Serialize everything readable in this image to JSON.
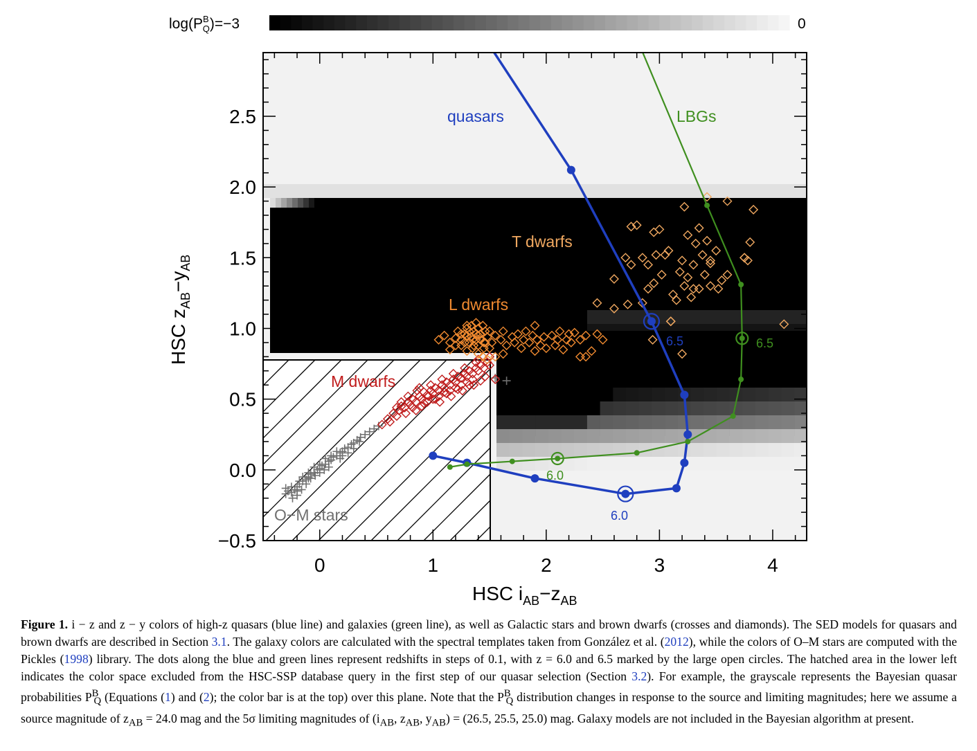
{
  "colorbar": {
    "label": "log(P",
    "label_sup": "B",
    "label_sub": "Q",
    "label_tail": ")=−3",
    "max_label": "0"
  },
  "chart_data": {
    "type": "scatter",
    "xlabel": "HSC  i",
    "xlabel_sub1": "AB",
    "xlabel_mid": "−z",
    "xlabel_sub2": "AB",
    "ylabel": "HSC  z",
    "ylabel_sub1": "AB",
    "ylabel_mid": "−y",
    "ylabel_sub2": "AB",
    "xlim": [
      -0.5,
      4.3
    ],
    "ylim": [
      -0.5,
      2.95
    ],
    "xticks": [
      0,
      1,
      2,
      3,
      4
    ],
    "xtick_labels": [
      "0",
      "1",
      "2",
      "3",
      "4"
    ],
    "yticks": [
      -0.5,
      0.0,
      0.5,
      1.0,
      1.5,
      2.0,
      2.5
    ],
    "ytick_labels": [
      "−0.5",
      "0.0",
      "0.5",
      "1.0",
      "1.5",
      "2.0",
      "2.5"
    ],
    "colors": {
      "quasars": "#1f3fbf",
      "lbgs": "#3f8f1f",
      "t_dwarfs": "#f0a860",
      "l_dwarfs": "#f08a30",
      "m_dwarfs": "#c01c1c",
      "om_stars": "#707070"
    },
    "series": [
      {
        "name": "quasars",
        "x": [
          1.0,
          1.3,
          1.9,
          2.7,
          3.15,
          3.22,
          3.25,
          3.22,
          2.93,
          2.22,
          1.5
        ],
        "y": [
          0.1,
          0.05,
          -0.06,
          -0.17,
          -0.13,
          0.05,
          0.25,
          0.53,
          1.05,
          2.12,
          3.0
        ],
        "large_points": [
          {
            "x": 2.7,
            "y": -0.17,
            "label": "6.0"
          },
          {
            "x": 2.93,
            "y": 1.05,
            "label": "6.5"
          }
        ]
      },
      {
        "name": "LBGs",
        "x": [
          1.15,
          1.3,
          1.7,
          2.1,
          2.8,
          3.25,
          3.65,
          3.72,
          3.73,
          3.72,
          3.42,
          2.8
        ],
        "y": [
          0.02,
          0.04,
          0.06,
          0.08,
          0.12,
          0.2,
          0.38,
          0.64,
          0.93,
          1.31,
          1.87,
          3.05
        ],
        "large_points": [
          {
            "x": 2.1,
            "y": 0.08,
            "label": "6.0"
          },
          {
            "x": 3.73,
            "y": 0.93,
            "label": "6.5"
          }
        ]
      }
    ],
    "annotations": [
      "quasars",
      "LBGs",
      "T dwarfs",
      "L dwarfs",
      "M dwarfs",
      "O−M stars",
      "6.5",
      "6.5",
      "6.0",
      "6.0"
    ],
    "t_dwarfs": [
      [
        2.6,
        1.35
      ],
      [
        2.75,
        1.45
      ],
      [
        2.75,
        1.72
      ],
      [
        2.8,
        1.73
      ],
      [
        2.85,
        1.5
      ],
      [
        2.85,
        1.18
      ],
      [
        2.9,
        1.45
      ],
      [
        2.9,
        1.28
      ],
      [
        2.95,
        1.68
      ],
      [
        2.97,
        1.52
      ],
      [
        3.0,
        1.7
      ],
      [
        3.02,
        1.38
      ],
      [
        3.05,
        1.52
      ],
      [
        3.08,
        1.55
      ],
      [
        3.12,
        1.24
      ],
      [
        3.15,
        1.2
      ],
      [
        3.18,
        1.4
      ],
      [
        3.2,
        1.48
      ],
      [
        3.22,
        1.86
      ],
      [
        3.22,
        1.3
      ],
      [
        3.25,
        1.66
      ],
      [
        3.28,
        1.22
      ],
      [
        3.3,
        1.45
      ],
      [
        3.32,
        1.6
      ],
      [
        3.35,
        1.71
      ],
      [
        3.38,
        1.52
      ],
      [
        3.4,
        1.38
      ],
      [
        3.42,
        1.93
      ],
      [
        3.42,
        1.62
      ],
      [
        3.45,
        1.3
      ],
      [
        3.45,
        1.46
      ],
      [
        3.5,
        1.55
      ],
      [
        3.52,
        1.28
      ],
      [
        3.55,
        1.34
      ],
      [
        3.6,
        1.38
      ],
      [
        3.35,
        1.28
      ],
      [
        3.25,
        1.36
      ],
      [
        2.6,
        1.14
      ],
      [
        2.45,
        1.18
      ],
      [
        2.72,
        1.17
      ],
      [
        2.95,
        1.32
      ],
      [
        3.1,
        1.05
      ],
      [
        3.45,
        1.48
      ],
      [
        3.6,
        1.9
      ],
      [
        3.75,
        1.5
      ],
      [
        3.8,
        1.61
      ],
      [
        3.78,
        1.48
      ],
      [
        3.83,
        1.84
      ],
      [
        3.75,
        1.5
      ],
      [
        2.7,
        1.5
      ],
      [
        3.3,
        1.28
      ],
      [
        4.1,
        1.03
      ],
      [
        3.2,
        0.82
      ],
      [
        2.94,
        0.92
      ],
      [
        3.1,
        1.05
      ]
    ],
    "l_dwarfs": [
      [
        1.05,
        0.92
      ],
      [
        1.1,
        0.95
      ],
      [
        1.15,
        0.9
      ],
      [
        1.2,
        0.93
      ],
      [
        1.22,
        0.98
      ],
      [
        1.25,
        0.88
      ],
      [
        1.28,
        0.96
      ],
      [
        1.3,
        1.0
      ],
      [
        1.32,
        0.9
      ],
      [
        1.34,
        0.94
      ],
      [
        1.36,
        0.98
      ],
      [
        1.38,
        0.92
      ],
      [
        1.4,
        0.88
      ],
      [
        1.42,
        0.96
      ],
      [
        1.44,
        1.02
      ],
      [
        1.46,
        0.9
      ],
      [
        1.48,
        0.94
      ],
      [
        1.5,
        0.98
      ],
      [
        1.52,
        0.9
      ],
      [
        1.3,
        0.84
      ],
      [
        1.35,
        0.86
      ],
      [
        1.4,
        0.82
      ],
      [
        1.25,
        0.92
      ],
      [
        1.45,
        0.86
      ],
      [
        1.55,
        0.95
      ],
      [
        1.6,
        0.92
      ],
      [
        1.62,
        0.98
      ],
      [
        1.65,
        0.88
      ],
      [
        1.7,
        0.94
      ],
      [
        1.72,
        0.9
      ],
      [
        1.75,
        0.96
      ],
      [
        1.78,
        0.86
      ],
      [
        1.8,
        0.92
      ],
      [
        1.82,
        0.98
      ],
      [
        1.85,
        0.9
      ],
      [
        1.88,
        0.95
      ],
      [
        1.9,
        0.84
      ],
      [
        1.92,
        0.92
      ],
      [
        1.95,
        0.88
      ],
      [
        1.98,
        0.94
      ],
      [
        2.0,
        0.86
      ],
      [
        2.05,
        0.95
      ],
      [
        2.08,
        0.88
      ],
      [
        2.1,
        0.92
      ],
      [
        2.12,
        0.98
      ],
      [
        2.15,
        0.85
      ],
      [
        2.18,
        0.92
      ],
      [
        2.2,
        0.96
      ],
      [
        2.22,
        0.9
      ],
      [
        2.25,
        0.97
      ],
      [
        2.3,
        0.92
      ],
      [
        2.35,
        0.95
      ],
      [
        2.4,
        0.84
      ],
      [
        2.45,
        0.96
      ],
      [
        2.5,
        0.92
      ],
      [
        1.3,
        1.02
      ],
      [
        1.38,
        1.04
      ],
      [
        1.44,
        0.8
      ],
      [
        1.48,
        0.78
      ],
      [
        1.55,
        0.8
      ],
      [
        1.62,
        0.82
      ],
      [
        1.9,
        1.02
      ],
      [
        2.3,
        0.8
      ],
      [
        2.35,
        0.8
      ],
      [
        1.15,
        0.85
      ],
      [
        1.2,
        0.88
      ],
      [
        1.3,
        0.95
      ],
      [
        1.35,
        0.92
      ],
      [
        1.4,
        1.0
      ],
      [
        1.45,
        0.9
      ],
      [
        1.5,
        0.86
      ],
      [
        1.25,
        0.96
      ],
      [
        1.32,
        0.98
      ],
      [
        1.4,
        0.95
      ],
      [
        1.36,
        0.88
      ],
      [
        1.42,
        0.92
      ],
      [
        1.28,
        0.9
      ],
      [
        1.34,
        1.02
      ],
      [
        1.38,
        0.96
      ],
      [
        1.46,
        0.98
      ]
    ],
    "m_dwarfs": [
      [
        0.55,
        0.32
      ],
      [
        0.6,
        0.36
      ],
      [
        0.62,
        0.34
      ],
      [
        0.65,
        0.4
      ],
      [
        0.68,
        0.38
      ],
      [
        0.7,
        0.42
      ],
      [
        0.72,
        0.45
      ],
      [
        0.75,
        0.44
      ],
      [
        0.78,
        0.48
      ],
      [
        0.8,
        0.46
      ],
      [
        0.82,
        0.5
      ],
      [
        0.85,
        0.48
      ],
      [
        0.88,
        0.52
      ],
      [
        0.9,
        0.5
      ],
      [
        0.92,
        0.55
      ],
      [
        0.95,
        0.53
      ],
      [
        0.98,
        0.56
      ],
      [
        1.0,
        0.54
      ],
      [
        1.02,
        0.58
      ],
      [
        1.05,
        0.56
      ],
      [
        1.08,
        0.6
      ],
      [
        1.1,
        0.58
      ],
      [
        1.12,
        0.62
      ],
      [
        1.15,
        0.6
      ],
      [
        1.18,
        0.64
      ],
      [
        1.2,
        0.62
      ],
      [
        1.22,
        0.66
      ],
      [
        1.25,
        0.65
      ],
      [
        1.28,
        0.68
      ],
      [
        1.3,
        0.66
      ],
      [
        1.32,
        0.7
      ],
      [
        1.35,
        0.68
      ],
      [
        1.38,
        0.72
      ],
      [
        1.4,
        0.7
      ],
      [
        1.42,
        0.74
      ],
      [
        1.45,
        0.72
      ],
      [
        1.48,
        0.76
      ],
      [
        1.5,
        0.74
      ],
      [
        0.85,
        0.42
      ],
      [
        0.9,
        0.45
      ],
      [
        0.95,
        0.48
      ],
      [
        1.0,
        0.5
      ],
      [
        1.05,
        0.52
      ],
      [
        1.1,
        0.55
      ],
      [
        1.15,
        0.56
      ],
      [
        1.2,
        0.58
      ],
      [
        1.25,
        0.6
      ],
      [
        1.3,
        0.62
      ],
      [
        1.35,
        0.64
      ],
      [
        0.78,
        0.52
      ],
      [
        0.88,
        0.58
      ],
      [
        0.98,
        0.6
      ],
      [
        1.08,
        0.64
      ],
      [
        1.18,
        0.68
      ],
      [
        1.28,
        0.72
      ],
      [
        1.38,
        0.76
      ],
      [
        0.72,
        0.48
      ],
      [
        0.82,
        0.44
      ],
      [
        0.92,
        0.47
      ],
      [
        1.02,
        0.5
      ],
      [
        1.12,
        0.54
      ],
      [
        1.22,
        0.57
      ],
      [
        1.32,
        0.6
      ],
      [
        1.42,
        0.63
      ],
      [
        0.68,
        0.44
      ],
      [
        0.76,
        0.4
      ],
      [
        0.86,
        0.56
      ],
      [
        0.96,
        0.52
      ],
      [
        1.06,
        0.48
      ],
      [
        1.16,
        0.52
      ],
      [
        1.26,
        0.56
      ],
      [
        1.36,
        0.6
      ],
      [
        1.46,
        0.66
      ],
      [
        1.55,
        0.64
      ],
      [
        1.4,
        0.78
      ],
      [
        1.5,
        0.8
      ]
    ],
    "om_stars": [
      [
        -0.3,
        -0.17
      ],
      [
        -0.28,
        -0.15
      ],
      [
        -0.25,
        -0.16
      ],
      [
        -0.22,
        -0.14
      ],
      [
        -0.2,
        -0.12
      ],
      [
        -0.18,
        -0.1
      ],
      [
        -0.15,
        -0.08
      ],
      [
        -0.12,
        -0.07
      ],
      [
        -0.1,
        -0.05
      ],
      [
        -0.08,
        -0.03
      ],
      [
        -0.05,
        -0.02
      ],
      [
        -0.02,
        0.0
      ],
      [
        0.0,
        0.01
      ],
      [
        0.02,
        0.03
      ],
      [
        0.05,
        0.04
      ],
      [
        0.08,
        0.06
      ],
      [
        0.1,
        0.07
      ],
      [
        0.12,
        0.09
      ],
      [
        0.15,
        0.1
      ],
      [
        0.18,
        0.12
      ],
      [
        0.2,
        0.13
      ],
      [
        0.22,
        0.15
      ],
      [
        0.25,
        0.16
      ],
      [
        0.28,
        0.18
      ],
      [
        0.3,
        0.19
      ],
      [
        0.33,
        0.21
      ],
      [
        0.36,
        0.23
      ],
      [
        0.4,
        0.25
      ],
      [
        0.44,
        0.27
      ],
      [
        0.48,
        0.29
      ],
      [
        0.52,
        0.31
      ],
      [
        -0.24,
        -0.2
      ],
      [
        -0.2,
        -0.18
      ],
      [
        -0.16,
        -0.14
      ],
      [
        -0.12,
        -0.1
      ],
      [
        -0.08,
        -0.06
      ],
      [
        -0.04,
        -0.04
      ],
      [
        0.0,
        -0.02
      ],
      [
        0.04,
        0.0
      ],
      [
        -0.15,
        -0.05
      ],
      [
        -0.05,
        0.02
      ],
      [
        0.05,
        0.08
      ],
      [
        0.15,
        0.13
      ],
      [
        -0.18,
        -0.08
      ],
      [
        -0.1,
        -0.02
      ],
      [
        0.08,
        0.02
      ],
      [
        0.18,
        0.08
      ],
      [
        0.3,
        0.15
      ],
      [
        -0.2,
        -0.15
      ],
      [
        -0.1,
        -0.06
      ],
      [
        0.0,
        0.04
      ],
      [
        0.1,
        0.1
      ],
      [
        0.2,
        0.1
      ],
      [
        -0.3,
        -0.13
      ],
      [
        -0.25,
        -0.12
      ],
      [
        1.65,
        0.63
      ],
      [
        1.55,
        0.65
      ],
      [
        0.35,
        0.2
      ],
      [
        0.25,
        0.12
      ]
    ]
  },
  "caption": {
    "label": "Figure 1.",
    "t1": " i − z and z − y colors of high-z quasars (blue line) and galaxies (green line), as well as Galactic stars and brown dwarfs (crosses and diamonds). The SED models for quasars and brown dwarfs are described in Section ",
    "r1": "3.1",
    "t2": ". The galaxy colors are calculated with the spectral templates taken from González et al. (",
    "r2": "2012",
    "t3": "), while the colors of O–M stars are computed with the Pickles (",
    "r3": "1998",
    "t4": ") library. The dots along the blue and green lines represent redshifts in steps of 0.1, with z = 6.0 and 6.5 marked by the large open circles. The hatched area in the lower left indicates the color space excluded from the HSC-SSP database query in the first step of our quasar selection (Section ",
    "r4": "3.2",
    "t5": "). For example, the grayscale represents the Bayesian quasar probabilities P",
    "t5sup": "B",
    "t5sub": "Q",
    "t6": " (Equations (",
    "r5": "1",
    "t7": ") and (",
    "r6": "2",
    "t8": "); the color bar is at the top) over this plane. Note that the P",
    "t8sup": "B",
    "t8sub": "Q",
    "t9": " distribution changes in response to the source and limiting magnitudes; here we assume a source magnitude of z",
    "t9sub": "AB",
    "t10": " = 24.0 mag and the 5σ limiting magnitudes of (i",
    "t10sub1": "AB",
    "t10b": ", z",
    "t10sub2": "AB",
    "t10c": ", y",
    "t10sub3": "AB",
    "t11": ") = (26.5, 25.5, 25.0) mag. Galaxy models are not included in the Bayesian algorithm at present."
  }
}
